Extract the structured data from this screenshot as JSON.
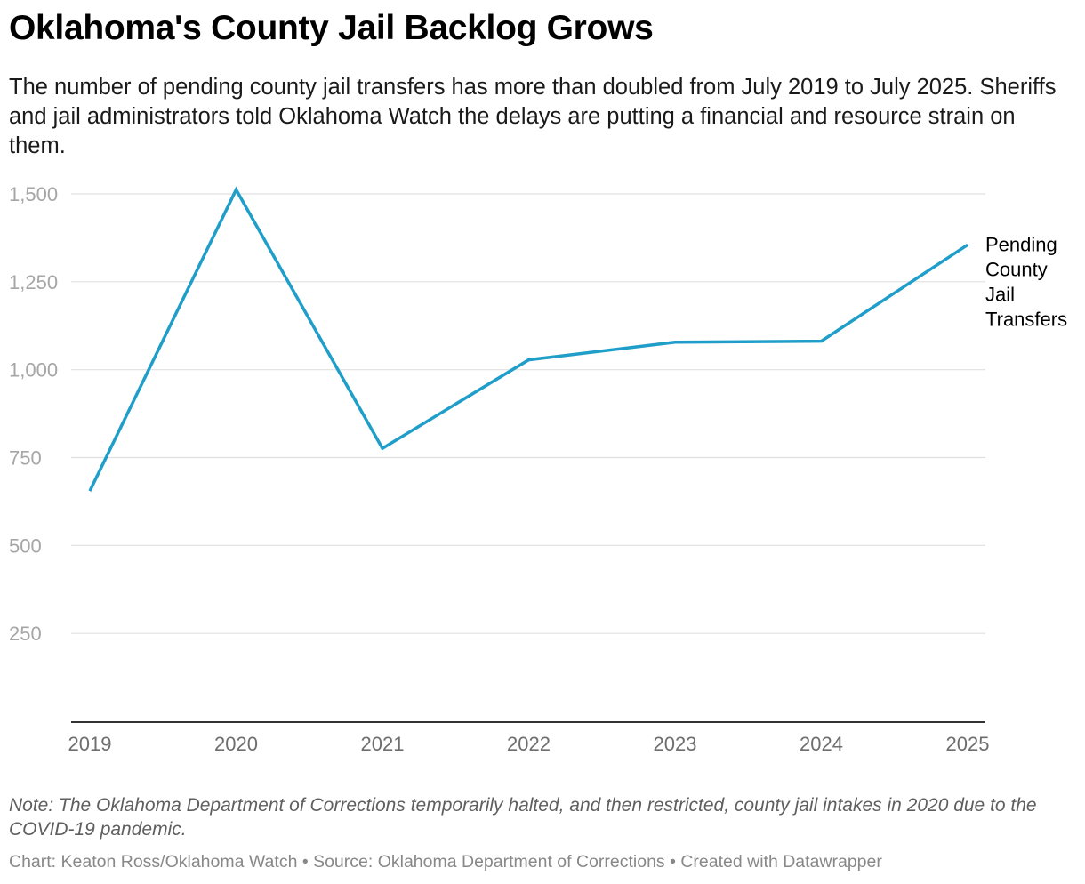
{
  "header": {
    "title": "Oklahoma's County Jail Backlog Grows",
    "subtitle": "The number of pending county jail transfers has more than doubled from July 2019 to July 2025. Sheriffs and jail administrators told Oklahoma Watch the delays are putting a financial and resource strain on them."
  },
  "footer": {
    "note": "Note: The Oklahoma Department of Corrections temporarily halted, and then restricted, county jail intakes in 2020 due to the COVID-19 pandemic.",
    "credit": "Chart: Keaton Ross/Oklahoma Watch • Source: Oklahoma Department of Corrections  • Created with Datawrapper"
  },
  "colors": {
    "line": "#1f9ec9",
    "grid": "#e0e0e0",
    "axis": "#333333"
  },
  "chart_data": {
    "type": "line",
    "title": "Oklahoma's County Jail Backlog Grows",
    "xlabel": "",
    "ylabel": "",
    "x": [
      "2019",
      "2020",
      "2021",
      "2022",
      "2023",
      "2024",
      "2025"
    ],
    "series": [
      {
        "name": "Pending County Jail Transfers",
        "label_lines": [
          "Pending",
          "County",
          "Jail",
          "Transfers"
        ],
        "values": [
          655,
          1512,
          776,
          1028,
          1078,
          1081,
          1355
        ]
      }
    ],
    "ylim": [
      0,
      1500
    ],
    "yticks": [
      250,
      500,
      750,
      1000,
      1250,
      1500
    ],
    "ytick_labels": [
      "250",
      "500",
      "750",
      "1,000",
      "1,250",
      "1,500"
    ],
    "grid": true,
    "legend": "direct label at line end, right"
  }
}
